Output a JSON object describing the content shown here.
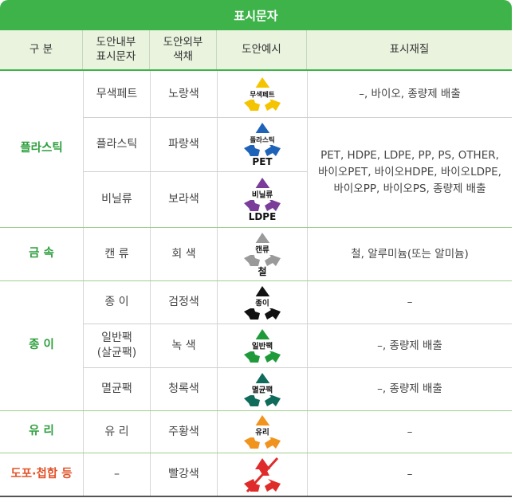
{
  "table": {
    "title": "표시문자",
    "headers": {
      "col1": "구 분",
      "col2": "도안내부\n표시문자",
      "col3": "도안외부\n색채",
      "col4": "도안예시",
      "col5": "표시재질"
    },
    "categories": {
      "plastic": "플라스틱",
      "metal": "금 속",
      "paper": "종 이",
      "glass": "유 리",
      "coated": "도포·첩합 등"
    },
    "rows": [
      {
        "inner": "무색페트",
        "outer": "노랑색",
        "icon_label": "무색페트",
        "icon_sub": "",
        "icon_color": "#f5c400",
        "icon_name": "recycle-clear-pet-icon",
        "material": "–, 바이오, 종량제 배출"
      },
      {
        "inner": "플라스틱",
        "outer": "파랑색",
        "icon_label": "플라스틱",
        "icon_sub": "PET",
        "icon_color": "#1f63b8",
        "icon_name": "recycle-plastic-icon",
        "material": ""
      },
      {
        "inner": "비닐류",
        "outer": "보라색",
        "icon_label": "비닐류",
        "icon_sub": "LDPE",
        "icon_color": "#7a3d9a",
        "icon_name": "recycle-vinyl-icon",
        "material": ""
      },
      {
        "inner": "캔 류",
        "outer": "회 색",
        "icon_label": "캔류",
        "icon_sub": "철",
        "icon_color": "#9a9a9a",
        "icon_name": "recycle-can-icon",
        "material": "철, 알루미늄(또는 알미늄)"
      },
      {
        "inner": "종 이",
        "outer": "검정색",
        "icon_label": "종이",
        "icon_sub": "",
        "icon_color": "#111111",
        "icon_name": "recycle-paper-icon",
        "material": "–"
      },
      {
        "inner": "일반팩\n(살균팩)",
        "outer": "녹 색",
        "icon_label": "일반팩",
        "icon_sub": "",
        "icon_color": "#1f9a3a",
        "icon_name": "recycle-carton-icon",
        "material": "–, 종량제 배출"
      },
      {
        "inner": "멸균팩",
        "outer": "청록색",
        "icon_label": "멸균팩",
        "icon_sub": "",
        "icon_color": "#0f6b5a",
        "icon_name": "recycle-aseptic-carton-icon",
        "material": "–, 종량제 배출"
      },
      {
        "inner": "유 리",
        "outer": "주황색",
        "icon_label": "유리",
        "icon_sub": "",
        "icon_color": "#f0941e",
        "icon_name": "recycle-glass-icon",
        "material": "–"
      },
      {
        "inner": "–",
        "outer": "빨강색",
        "icon_label": "",
        "icon_sub": "",
        "icon_color": "#e02b2b",
        "icon_name": "recycle-prohibited-icon",
        "material": "–"
      }
    ],
    "plastic_shared_material": "PET, HDPE, LDPE, PP, PS, OTHER,\n바이오PET, 바이오HDPE, 바이오LDPE,\n바이오PP, 바이오PS, 종량제 배출"
  }
}
